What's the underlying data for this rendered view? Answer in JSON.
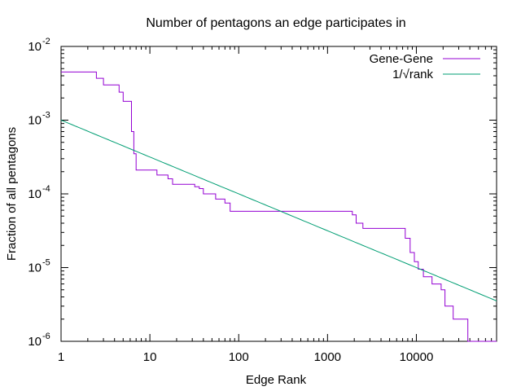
{
  "chart_data": {
    "type": "line",
    "title": "Number of pentagons an edge participates in",
    "xlabel": "Edge Rank",
    "ylabel": "Fraction of all pentagons",
    "xscale": "log",
    "yscale": "log",
    "xlim": [
      1,
      80000
    ],
    "ylim": [
      1e-06,
      0.01
    ],
    "grid": false,
    "legend_position": "top-right",
    "x_ticks": [
      {
        "value": 1,
        "label": "1"
      },
      {
        "value": 10,
        "label": "10"
      },
      {
        "value": 100,
        "label": "100"
      },
      {
        "value": 1000,
        "label": "1000"
      },
      {
        "value": 10000,
        "label": "10000"
      }
    ],
    "y_ticks": [
      {
        "value": 1e-06,
        "base": "10",
        "exp": "-6"
      },
      {
        "value": 1e-05,
        "base": "10",
        "exp": "-5"
      },
      {
        "value": 0.0001,
        "base": "10",
        "exp": "-4"
      },
      {
        "value": 0.001,
        "base": "10",
        "exp": "-3"
      },
      {
        "value": 0.01,
        "base": "10",
        "exp": "-2"
      }
    ],
    "series": [
      {
        "name": "Gene-Gene",
        "color": "#9400d3",
        "style": "step",
        "points": [
          [
            1,
            0.0045
          ],
          [
            2,
            0.0045
          ],
          [
            2.5,
            0.0037
          ],
          [
            3,
            0.003
          ],
          [
            4,
            0.003
          ],
          [
            4.5,
            0.0024
          ],
          [
            5,
            0.0018
          ],
          [
            5.8,
            0.0018
          ],
          [
            6.2,
            0.0007
          ],
          [
            6.6,
            0.00035
          ],
          [
            7,
            0.00021
          ],
          [
            11,
            0.00021
          ],
          [
            12,
            0.00018
          ],
          [
            15,
            0.00018
          ],
          [
            16,
            0.00016
          ],
          [
            18,
            0.000135
          ],
          [
            30,
            0.000135
          ],
          [
            32,
            0.000125
          ],
          [
            36,
            0.000118
          ],
          [
            40,
            0.0001
          ],
          [
            50,
            0.0001
          ],
          [
            55,
            8.5e-05
          ],
          [
            70,
            7.5e-05
          ],
          [
            80,
            5.8e-05
          ],
          [
            1700,
            5.8e-05
          ],
          [
            1900,
            5.2e-05
          ],
          [
            2100,
            4e-05
          ],
          [
            2500,
            3.4e-05
          ],
          [
            7000,
            3.4e-05
          ],
          [
            7500,
            2.5e-05
          ],
          [
            8500,
            1.6e-05
          ],
          [
            9500,
            1.2e-05
          ],
          [
            10500,
            9.5e-06
          ],
          [
            12000,
            7.5e-06
          ],
          [
            15000,
            6e-06
          ],
          [
            19000,
            5e-06
          ],
          [
            21000,
            3e-06
          ],
          [
            26000,
            2e-06
          ],
          [
            37000,
            2e-06
          ],
          [
            38000,
            1e-06
          ],
          [
            80000,
            1e-06
          ]
        ]
      },
      {
        "name": "1/√rank",
        "color": "#009e73",
        "style": "line",
        "formula": "1/sqrt(x)",
        "scale_factor": 0.001
      }
    ]
  }
}
